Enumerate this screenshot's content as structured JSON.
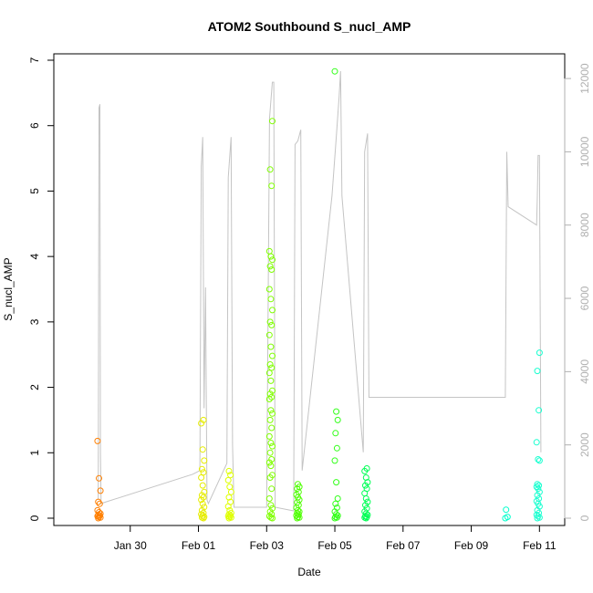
{
  "chart_data": {
    "type": "scatter",
    "title": "ATOM2 Southbound S_nucl_AMP",
    "xlabel": "Date",
    "ylabel": "S_nucl_AMP",
    "xlim": [
      "2017-01-28",
      "2017-02-11T12:00"
    ],
    "ylim": [
      0,
      7
    ],
    "y2lim": [
      0,
      12500
    ],
    "y2_color": "#c0c0c0",
    "x_ticks": [
      {
        "date": "2017-01-30",
        "label": "Jan 30"
      },
      {
        "date": "2017-02-01",
        "label": "Feb 01"
      },
      {
        "date": "2017-02-03",
        "label": "Feb 03"
      },
      {
        "date": "2017-02-05",
        "label": "Feb 05"
      },
      {
        "date": "2017-02-07",
        "label": "Feb 07"
      },
      {
        "date": "2017-02-09",
        "label": "Feb 09"
      },
      {
        "date": "2017-02-11",
        "label": "Feb 11"
      }
    ],
    "y_ticks": [
      0,
      1,
      2,
      3,
      4,
      5,
      6,
      7
    ],
    "y2_ticks": [
      0,
      2000,
      4000,
      6000,
      8000,
      10000,
      12000
    ],
    "grid": false,
    "point_groups": [
      {
        "date": "2017-01-29T02:00",
        "color": "#ff7f00",
        "values": [
          1.18,
          0.61,
          0.42,
          0.25,
          0.22,
          0.12,
          0.09,
          0.07,
          0.05,
          0.04,
          0.03,
          0.02,
          0.01,
          0.0
        ]
      },
      {
        "date": "2017-02-01T03:00",
        "color": "#e6ec00",
        "values": [
          1.5,
          1.45,
          1.05,
          0.88,
          0.75,
          0.7,
          0.62,
          0.5,
          0.4,
          0.35,
          0.32,
          0.28,
          0.22,
          0.17,
          0.12,
          0.08,
          0.06,
          0.04,
          0.02,
          0.01,
          0.0
        ]
      },
      {
        "date": "2017-02-01T22:00",
        "color": "#dfff00",
        "values": [
          0.72,
          0.66,
          0.58,
          0.48,
          0.4,
          0.32,
          0.25,
          0.18,
          0.12,
          0.08,
          0.06,
          0.04,
          0.03,
          0.02,
          0.01,
          0.0
        ]
      },
      {
        "date": "2017-02-03T03:00",
        "color": "#7fff00",
        "values": [
          6.07,
          5.33,
          5.08,
          4.08,
          4.0,
          3.95,
          3.85,
          3.8,
          3.5,
          3.35,
          3.18,
          3.0,
          2.95,
          2.8,
          2.62,
          2.48,
          2.35,
          2.3,
          2.22,
          2.1,
          1.95,
          1.9,
          1.85,
          1.82,
          1.65,
          1.6,
          1.5,
          1.38,
          1.25,
          1.15,
          1.1,
          1.0,
          0.9,
          0.85,
          0.8,
          0.66,
          0.62,
          0.45,
          0.3,
          0.2,
          0.15,
          0.1,
          0.06,
          0.03,
          0.01,
          0.0
        ]
      },
      {
        "date": "2017-02-03T22:00",
        "color": "#4dff00",
        "values": [
          0.52,
          0.48,
          0.45,
          0.4,
          0.36,
          0.32,
          0.28,
          0.24,
          0.2,
          0.16,
          0.12,
          0.1,
          0.08,
          0.06,
          0.04,
          0.02,
          0.01,
          0.0
        ]
      },
      {
        "date": "2017-02-05T01:00",
        "color": "#33ff1a",
        "values": [
          6.83,
          1.63,
          1.5,
          1.3,
          1.07,
          0.88,
          0.55,
          0.3,
          0.22,
          0.16,
          0.1,
          0.06,
          0.04,
          0.02,
          0.01,
          0.0
        ]
      },
      {
        "date": "2017-02-05T22:00",
        "color": "#00ff55",
        "values": [
          0.76,
          0.72,
          0.62,
          0.55,
          0.5,
          0.45,
          0.38,
          0.3,
          0.25,
          0.2,
          0.15,
          0.1,
          0.07,
          0.05,
          0.03,
          0.02,
          0.01,
          0.0
        ]
      },
      {
        "date": "2017-02-10T01:00",
        "color": "#00ffcc",
        "values": [
          0.13,
          0.02,
          0.0
        ]
      },
      {
        "date": "2017-02-10T23:00",
        "color": "#1affd0",
        "values": [
          2.53,
          2.25,
          1.65,
          1.16,
          0.9,
          0.88,
          0.52,
          0.5,
          0.48,
          0.45,
          0.4,
          0.35,
          0.3,
          0.26,
          0.22,
          0.18,
          0.12,
          0.08,
          0.05,
          0.03,
          0.01,
          0.0
        ]
      }
    ],
    "altitude_series": {
      "axis": "right",
      "color": "#c0c0c0",
      "points": [
        [
          "2017-01-29T01:30",
          500
        ],
        [
          "2017-01-29T02:00",
          11200
        ],
        [
          "2017-01-29T02:40",
          11300
        ],
        [
          "2017-01-29T03:00",
          1800
        ],
        [
          "2017-01-29T03:30",
          400
        ],
        [
          "2017-01-31T20:00",
          1200
        ],
        [
          "2017-02-01T01:00",
          1300
        ],
        [
          "2017-02-01T02:00",
          9600
        ],
        [
          "2017-02-01T03:00",
          10400
        ],
        [
          "2017-02-01T04:00",
          3000
        ],
        [
          "2017-02-01T05:00",
          6300
        ],
        [
          "2017-02-01T06:00",
          500
        ],
        [
          "2017-02-01T07:00",
          400
        ],
        [
          "2017-02-01T20:00",
          1500
        ],
        [
          "2017-02-01T21:00",
          9300
        ],
        [
          "2017-02-01T23:00",
          10400
        ],
        [
          "2017-02-02T00:00",
          2000
        ],
        [
          "2017-02-02T01:00",
          300
        ],
        [
          "2017-02-03T00:00",
          300
        ],
        [
          "2017-02-03T02:00",
          10900
        ],
        [
          "2017-02-03T04:00",
          11900
        ],
        [
          "2017-02-03T05:00",
          11900
        ],
        [
          "2017-02-03T06:00",
          300
        ],
        [
          "2017-02-03T19:00",
          200
        ],
        [
          "2017-02-03T20:00",
          10200
        ],
        [
          "2017-02-03T22:00",
          10300
        ],
        [
          "2017-02-04T00:00",
          10600
        ],
        [
          "2017-02-04T01:00",
          1300
        ],
        [
          "2017-02-04T22:00",
          8800
        ],
        [
          "2017-02-05T01:00",
          10400
        ],
        [
          "2017-02-05T03:00",
          11500
        ],
        [
          "2017-02-05T04:00",
          12200
        ],
        [
          "2017-02-05T05:00",
          8800
        ],
        [
          "2017-02-05T20:00",
          1800
        ],
        [
          "2017-02-05T21:00",
          10000
        ],
        [
          "2017-02-05T23:00",
          10500
        ],
        [
          "2017-02-06T00:00",
          3300
        ],
        [
          "2017-02-06T04:00",
          3300
        ],
        [
          "2017-02-09T12:00",
          3300
        ],
        [
          "2017-02-10T00:00",
          3300
        ],
        [
          "2017-02-10T01:00",
          10000
        ],
        [
          "2017-02-10T02:00",
          8500
        ],
        [
          "2017-02-10T22:00",
          8000
        ],
        [
          "2017-02-10T22:30",
          8800
        ],
        [
          "2017-02-10T23:00",
          9900
        ],
        [
          "2017-02-11T00:00",
          9900
        ],
        [
          "2017-02-11T01:00",
          1800
        ]
      ]
    }
  }
}
